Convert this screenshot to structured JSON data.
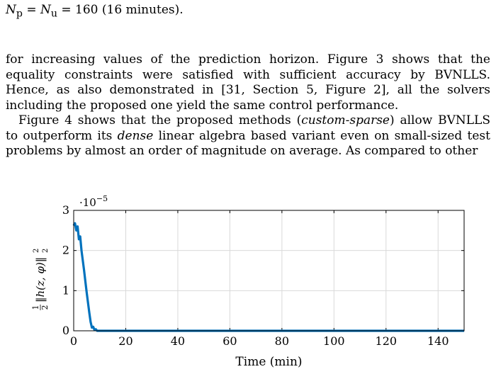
{
  "top_line": {
    "prefix": "N",
    "sub_p": "p",
    "eq1": " = N",
    "sub_u": "u",
    "rest": " = 160 (16 minutes)."
  },
  "paragraph1": "for increasing values of the prediction horizon. Figure 3 shows that the equality constraints were satisfied with sufficient accuracy by BVNLLS. Hence, as also demonstrated in [31, Section 5, Figure 2], all the solvers including the proposed one yield the same control performance.",
  "paragraph2": {
    "a": "Figure 4 shows that the proposed methods (",
    "b": "custom-sparse",
    "c": ") allow BVNLLS to outperform its ",
    "d": "dense",
    "e": " linear algebra based variant even on small-sized test problems by almost an order of magnitude on average. As compared to other"
  },
  "chart_data": {
    "type": "line",
    "xlabel": "Time (min)",
    "ylabel": "1/2 ||h(z, φ)||₂²",
    "ylabel_parts": {
      "frac_num": "1",
      "frac_den": "2",
      "body": "‖h(z, φ)‖",
      "sub": "2",
      "sup": "2"
    },
    "scale_label": {
      "base": "·10",
      "exp": "−5"
    },
    "xlim": [
      0,
      150
    ],
    "ylim": [
      0,
      3
    ],
    "xticks": [
      0,
      20,
      40,
      60,
      80,
      100,
      120,
      140
    ],
    "yticks": [
      0,
      1,
      2,
      3
    ],
    "grid": true,
    "series": [
      {
        "color": "#0072BD",
        "x": [
          0,
          0.5,
          1,
          1.5,
          2,
          2.5,
          3,
          3.5,
          4,
          4.5,
          5,
          5.5,
          6,
          6.5,
          7,
          7.5,
          8,
          8.5,
          9,
          10,
          20,
          40,
          60,
          80,
          100,
          120,
          140,
          150
        ],
        "y": [
          2.62,
          2.68,
          2.5,
          2.6,
          2.28,
          2.35,
          2.0,
          1.75,
          1.5,
          1.22,
          0.95,
          0.7,
          0.45,
          0.22,
          0.08,
          0.1,
          0.02,
          0.04,
          0.0,
          0.0,
          0.0,
          0.0,
          0.0,
          0.0,
          0.0,
          0.0,
          0.0,
          0.0
        ]
      }
    ]
  }
}
